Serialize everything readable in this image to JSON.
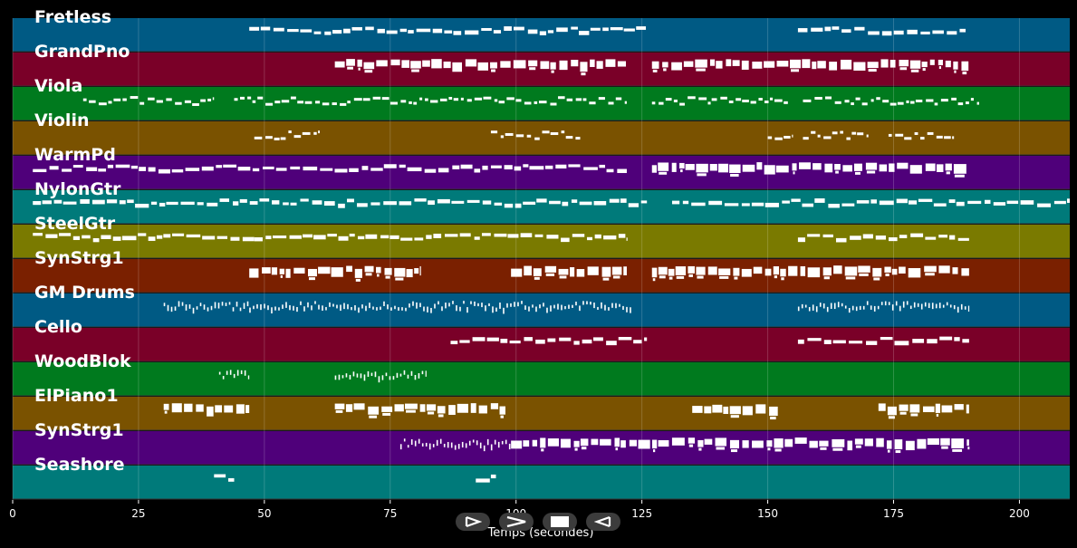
{
  "chart_data": {
    "type": "piano-roll",
    "xlabel": "Temps (secondes)",
    "xlim": [
      0,
      210
    ],
    "xticks": [
      0,
      25,
      50,
      75,
      100,
      125,
      150,
      175,
      200
    ],
    "grid": true,
    "tracks": [
      {
        "name": "Fretless",
        "color": "#005a84",
        "segments": [
          [
            47,
            126,
            "dash"
          ],
          [
            156,
            190,
            "dash"
          ]
        ]
      },
      {
        "name": "GrandPno",
        "color": "#7a0028",
        "segments": [
          [
            64,
            122,
            "chord"
          ],
          [
            127,
            190,
            "chord"
          ]
        ]
      },
      {
        "name": "Viola",
        "color": "#007a1e",
        "segments": [
          [
            14,
            40,
            "dots"
          ],
          [
            44,
            122,
            "dots"
          ],
          [
            127,
            154,
            "dots"
          ],
          [
            157,
            192,
            "dots"
          ]
        ]
      },
      {
        "name": "Violin",
        "color": "#7a5200",
        "segments": [
          [
            48,
            61,
            "dots"
          ],
          [
            95,
            113,
            "dots"
          ],
          [
            150,
            155,
            "dots"
          ],
          [
            157,
            170,
            "dots"
          ],
          [
            174,
            187,
            "dots"
          ]
        ]
      },
      {
        "name": "WarmPd",
        "color": "#4f007a",
        "segments": [
          [
            4,
            122,
            "dash"
          ],
          [
            127,
            190,
            "chord"
          ]
        ]
      },
      {
        "name": "NylonGtr",
        "color": "#007a7a",
        "segments": [
          [
            4,
            126,
            "dash"
          ],
          [
            131,
            210,
            "dash"
          ]
        ]
      },
      {
        "name": "SteelGtr",
        "color": "#7a7a00",
        "segments": [
          [
            4,
            48,
            "dash"
          ],
          [
            48,
            122,
            "dash"
          ],
          [
            156,
            190,
            "dash"
          ]
        ]
      },
      {
        "name": "SynStrg1",
        "color": "#7a2000",
        "segments": [
          [
            47,
            81,
            "chord"
          ],
          [
            99,
            122,
            "chord"
          ],
          [
            127,
            190,
            "chord"
          ]
        ]
      },
      {
        "name": "GM Drums",
        "color": "#005a84",
        "segments": [
          [
            30,
            47,
            "drum"
          ],
          [
            47,
            123,
            "drum"
          ],
          [
            156,
            190,
            "drum"
          ]
        ]
      },
      {
        "name": "Cello",
        "color": "#7a0028",
        "segments": [
          [
            87,
            126,
            "dash"
          ],
          [
            156,
            190,
            "dash"
          ]
        ]
      },
      {
        "name": "WoodBlok",
        "color": "#007a1e",
        "segments": [
          [
            41,
            47,
            "drum"
          ],
          [
            64,
            82,
            "drum"
          ]
        ]
      },
      {
        "name": "ElPiano1",
        "color": "#7a5200",
        "segments": [
          [
            30,
            47,
            "chord"
          ],
          [
            64,
            98,
            "chord"
          ],
          [
            135,
            152,
            "chord"
          ],
          [
            172,
            190,
            "chord"
          ]
        ]
      },
      {
        "name": "SynStrg1",
        "color": "#4f007a",
        "segments": [
          [
            77,
            99,
            "drum"
          ],
          [
            99,
            190,
            "chord"
          ]
        ]
      },
      {
        "name": "Seashore",
        "color": "#007a7a",
        "segments": [
          [
            40,
            44,
            "dash"
          ],
          [
            92,
            96,
            "dash"
          ]
        ]
      }
    ]
  },
  "controls": [
    {
      "name": "step-forward-icon"
    },
    {
      "name": "play-icon"
    },
    {
      "name": "stop-icon"
    },
    {
      "name": "step-back-icon"
    }
  ]
}
